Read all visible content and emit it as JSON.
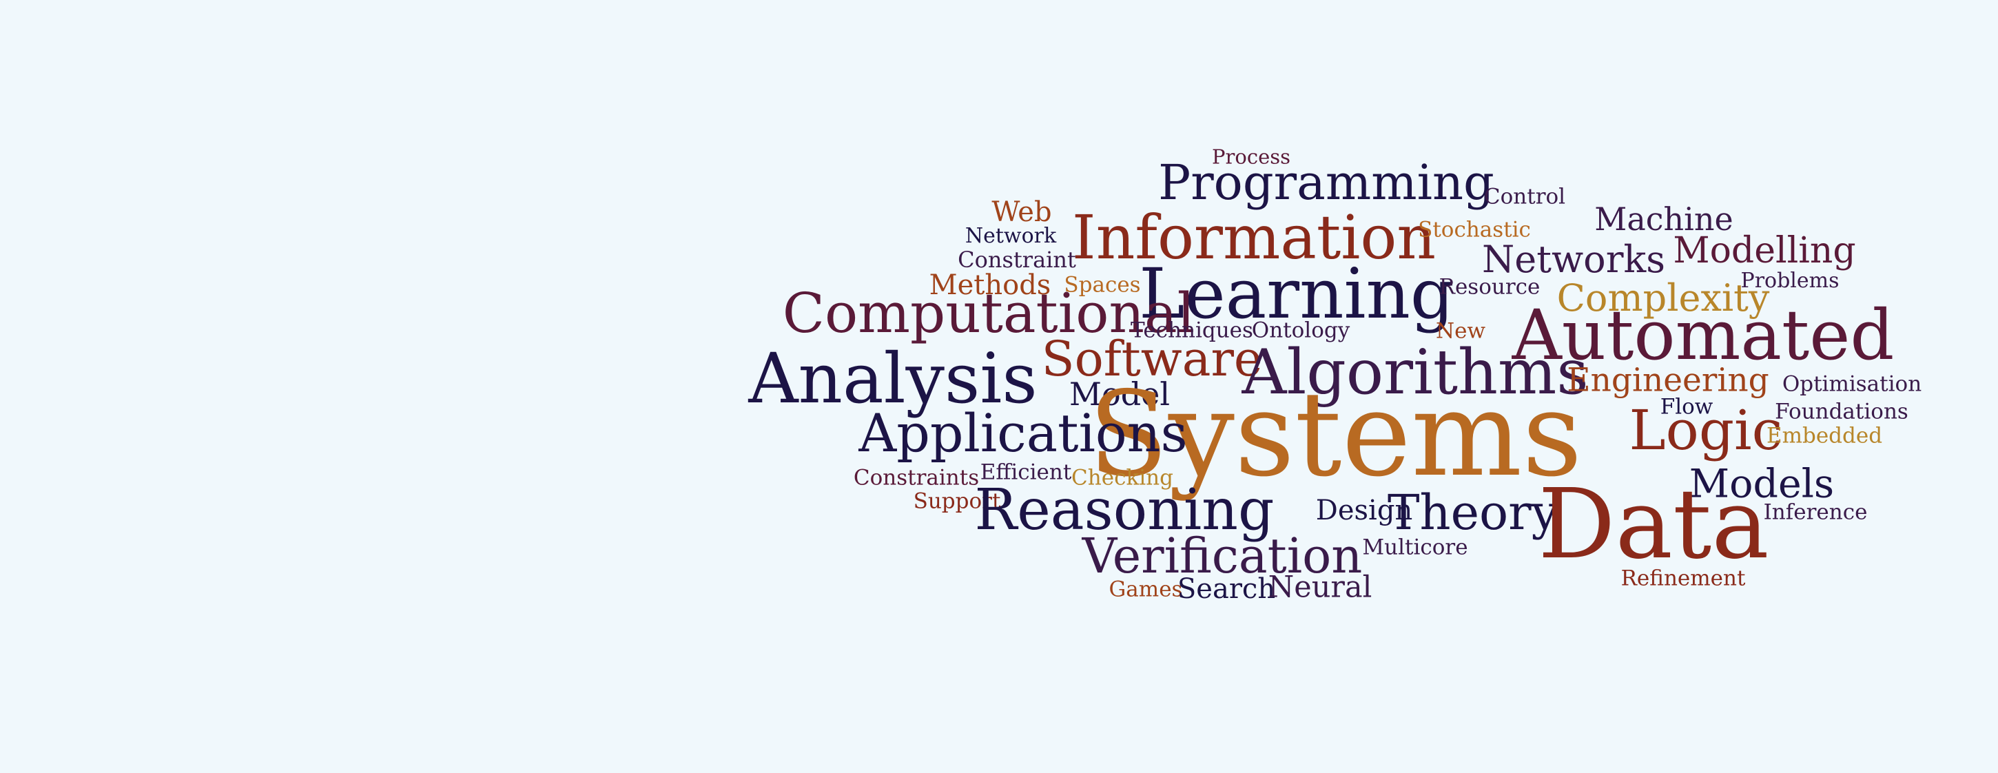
{
  "palette": {
    "background": "#f0f8fc",
    "navy": "#1c1446",
    "plum": "#3a1b4a",
    "maroon": "#5a1a38",
    "crimson": "#8a2a1a",
    "rust": "#a0431a",
    "orange": "#b86a22",
    "gold": "#b8862a"
  },
  "words": {
    "process": "Process",
    "programming": "Programming",
    "control": "Control",
    "web": "Web",
    "information": "Information",
    "stochastic": "Stochastic",
    "machine": "Machine",
    "network": "Network",
    "constraint": "Constraint",
    "networks": "Networks",
    "modelling": "Modelling",
    "methods": "Methods",
    "spaces": "Spaces",
    "learning": "Learning",
    "resource": "Resource",
    "complexity": "Complexity",
    "problems": "Problems",
    "computational": "Computational",
    "techniques": "Techniques",
    "ontology": "Ontology",
    "new": "New",
    "automated": "Automated",
    "software": "Software",
    "analysis": "Analysis",
    "algorithms": "Algorithms",
    "engineering": "Engineering",
    "optimisation": "Optimisation",
    "model": "Model",
    "flow": "Flow",
    "foundations": "Foundations",
    "systems": "Systems",
    "applications": "Applications",
    "logic": "Logic",
    "embedded": "Embedded",
    "constraints": "Constraints",
    "efficient": "Efficient",
    "checking": "Checking",
    "models": "Models",
    "support": "Support",
    "reasoning": "Reasoning",
    "design": "Design",
    "theory": "Theory",
    "data": "Data",
    "inference": "Inference",
    "verification": "Verification",
    "multicore": "Multicore",
    "refinement": "Refinement",
    "games": "Games",
    "search": "Search",
    "neural": "Neural"
  },
  "word_colors": {
    "process": "#5a1a38",
    "programming": "#1c1446",
    "control": "#3a1b4a",
    "web": "#a0431a",
    "information": "#8a2a1a",
    "stochastic": "#b86a22",
    "machine": "#3a1b4a",
    "network": "#1c1446",
    "constraint": "#3a1b4a",
    "networks": "#3a1b4a",
    "modelling": "#5a1a38",
    "methods": "#a0431a",
    "spaces": "#b86a22",
    "learning": "#1c1446",
    "resource": "#3a1b4a",
    "complexity": "#b8862a",
    "problems": "#3a1b4a",
    "computational": "#5a1a38",
    "techniques": "#3a1b4a",
    "ontology": "#3a1b4a",
    "new": "#a0431a",
    "automated": "#5a1a38",
    "software": "#8a2a1a",
    "analysis": "#1c1446",
    "algorithms": "#3a1b4a",
    "engineering": "#a0431a",
    "optimisation": "#3a1b4a",
    "model": "#1c1446",
    "flow": "#1c1446",
    "foundations": "#3a1b4a",
    "systems": "#b86a22",
    "applications": "#1c1446",
    "logic": "#8a2a1a",
    "embedded": "#b8862a",
    "constraints": "#5a1a38",
    "efficient": "#3a1b4a",
    "checking": "#b8862a",
    "models": "#1c1446",
    "support": "#8a2a1a",
    "reasoning": "#1c1446",
    "design": "#1c1446",
    "theory": "#1c1446",
    "data": "#8a2a1a",
    "inference": "#3a1b4a",
    "verification": "#3a1b4a",
    "multicore": "#3a1b4a",
    "refinement": "#8a2a1a",
    "games": "#a0431a",
    "search": "#1c1446",
    "neural": "#3a1b4a"
  }
}
